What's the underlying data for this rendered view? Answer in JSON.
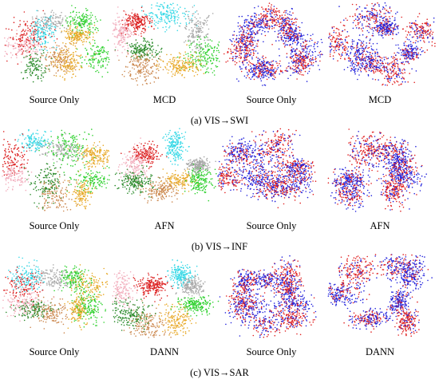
{
  "colors": {
    "class_palette": [
      "#2fd12f",
      "#e8a928",
      "#cc8a52",
      "#2a8a2a",
      "#f2aebd",
      "#dc2020",
      "#36d8e6",
      "#a8a8a8"
    ],
    "source_domain": "#2424dc",
    "target_domain": "#e02020"
  },
  "rows": [
    {
      "caption": "(a) VIS→SWI",
      "panels": [
        {
          "label": "Source Only",
          "coloring": "by-class",
          "clusters": 10
        },
        {
          "label": "MCD",
          "coloring": "by-class",
          "clusters": 8
        },
        {
          "label": "Source Only",
          "coloring": "by-domain",
          "clusters": 10
        },
        {
          "label": "MCD",
          "coloring": "by-domain",
          "clusters": 8
        }
      ]
    },
    {
      "caption": "(b) VIS→INF",
      "panels": [
        {
          "label": "Source Only",
          "coloring": "by-class",
          "clusters": 10
        },
        {
          "label": "AFN",
          "coloring": "by-class",
          "clusters": 8
        },
        {
          "label": "Source Only",
          "coloring": "by-domain",
          "clusters": 9
        },
        {
          "label": "AFN",
          "coloring": "by-domain",
          "clusters": 7
        }
      ]
    },
    {
      "caption": "(c) VIS→SAR",
      "panels": [
        {
          "label": "Source Only",
          "coloring": "by-class",
          "clusters": 10
        },
        {
          "label": "DANN",
          "coloring": "by-class",
          "clusters": 8
        },
        {
          "label": "Source Only",
          "coloring": "by-domain",
          "clusters": 9
        },
        {
          "label": "DANN",
          "coloring": "by-domain",
          "clusters": 7
        }
      ]
    }
  ]
}
